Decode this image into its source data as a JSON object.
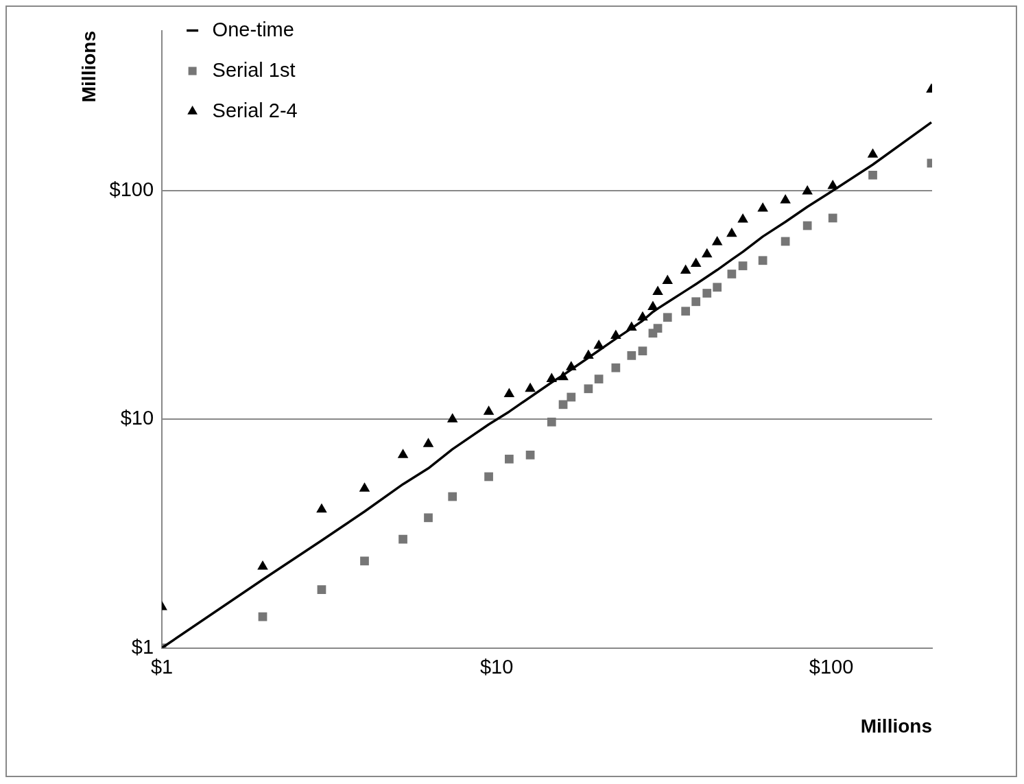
{
  "chart_data": {
    "type": "scatter",
    "xlabel": "Millions",
    "ylabel": "Millions",
    "log": "xy",
    "xlim": [
      1,
      200
    ],
    "ylim": [
      1,
      500
    ],
    "xticks": [
      {
        "value": 1,
        "label": "$1"
      },
      {
        "value": 10,
        "label": "$10"
      },
      {
        "value": 100,
        "label": "$100"
      }
    ],
    "yticks": [
      {
        "value": 1,
        "label": "$1"
      },
      {
        "value": 10,
        "label": "$10"
      },
      {
        "value": 100,
        "label": "$100"
      }
    ],
    "grid": "y",
    "legend": "top left",
    "x": [
      1,
      2.0,
      3.0,
      4.03,
      5.25,
      6.25,
      7.38,
      9.47,
      10.9,
      12.6,
      14.6,
      15.8,
      16.7,
      18.8,
      20.2,
      22.7,
      25.3,
      27.3,
      29.3,
      30.3,
      32.4,
      36.7,
      39.4,
      42.5,
      45.6,
      50.4,
      54.4,
      62.4,
      72.9,
      84.8,
      101,
      133,
      199
    ],
    "series": [
      {
        "name": "One-time",
        "type": "line",
        "marker": "none",
        "line_style": "solid",
        "color": "#000000",
        "values": [
          1,
          1.99,
          2.95,
          3.95,
          5.2,
          6.1,
          7.4,
          9.5,
          10.8,
          12.5,
          14.5,
          15.6,
          16.5,
          18.6,
          20,
          22.5,
          25,
          27,
          29.5,
          30.5,
          32.5,
          36.5,
          39,
          42,
          45,
          50,
          54,
          63,
          73,
          85,
          100,
          130,
          199
        ]
      },
      {
        "name": "Serial 1st",
        "marker": "square",
        "color": "#767676",
        "values": [
          1,
          1.37,
          1.8,
          2.4,
          2.99,
          3.71,
          4.59,
          5.61,
          6.7,
          6.98,
          9.73,
          11.6,
          12.5,
          13.6,
          15,
          16.8,
          19,
          19.9,
          23.8,
          25,
          27.9,
          29.7,
          32.7,
          35.6,
          37.8,
          43.2,
          46.9,
          49.5,
          60,
          70.3,
          75.9,
          117,
          132
        ]
      },
      {
        "name": "Serial 2-4",
        "marker": "triangle",
        "color": "#000000",
        "values": [
          1.51,
          2.27,
          4.03,
          4.98,
          6.98,
          7.8,
          10,
          10.8,
          12.9,
          13.6,
          15,
          15.3,
          16.9,
          19,
          21,
          23.2,
          25.2,
          27.9,
          31,
          36.1,
          40.3,
          44.7,
          47.9,
          52.7,
          59.6,
          64.8,
          74.8,
          83.6,
          90.8,
          99.3,
          105,
          144,
          277
        ]
      }
    ]
  }
}
